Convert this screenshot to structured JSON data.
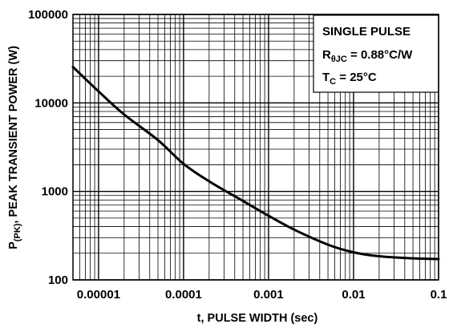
{
  "chart_data": {
    "type": "line",
    "title": "",
    "xlabel": "t, PULSE WIDTH (sec)",
    "ylabel": {
      "prefix": "P",
      "sub": "(PK)",
      "rest": ", PEAK TRANSIENT POWER (W)"
    },
    "x_scale": "log",
    "y_scale": "log",
    "xlim": [
      5e-06,
      0.1
    ],
    "ylim": [
      100,
      100000
    ],
    "grid": true,
    "x_ticks": [
      {
        "value": 1e-05,
        "label": "0.00001"
      },
      {
        "value": 0.0001,
        "label": "0.0001"
      },
      {
        "value": 0.001,
        "label": "0.001"
      },
      {
        "value": 0.01,
        "label": "0.01"
      },
      {
        "value": 0.1,
        "label": "0.1"
      }
    ],
    "y_ticks": [
      {
        "value": 100,
        "label": "100"
      },
      {
        "value": 1000,
        "label": "1000"
      },
      {
        "value": 10000,
        "label": "10000"
      },
      {
        "value": 100000,
        "label": "100000"
      }
    ],
    "legend": {
      "position": "top-right",
      "line1": "SINGLE PULSE",
      "line2": {
        "prefix": "R",
        "sub": "θJC",
        "rest": " = 0.88°C/W"
      },
      "line3": {
        "prefix": "T",
        "sub": "C",
        "rest": " = 25°C"
      }
    },
    "series": [
      {
        "x": [
          5e-06,
          1e-05,
          2e-05,
          5e-05,
          0.0001,
          0.0002,
          0.0005,
          0.001,
          0.002,
          0.005,
          0.01,
          0.02,
          0.05,
          0.1
        ],
        "y": [
          25500,
          13500,
          7400,
          3800,
          2050,
          1300,
          780,
          530,
          370,
          250,
          205,
          185,
          175,
          172
        ]
      }
    ]
  }
}
